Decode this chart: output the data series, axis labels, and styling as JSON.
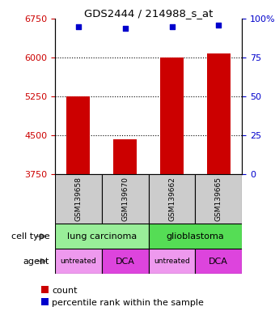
{
  "title": "GDS2444 / 214988_s_at",
  "samples": [
    "GSM139658",
    "GSM139670",
    "GSM139662",
    "GSM139665"
  ],
  "bar_values": [
    5250,
    4420,
    6000,
    6080
  ],
  "dot_values_pct": [
    95,
    94,
    95,
    96
  ],
  "ylim": [
    3750,
    6750
  ],
  "yticks_left": [
    3750,
    4500,
    5250,
    6000,
    6750
  ],
  "yticks_right": [
    0,
    25,
    50,
    75,
    100
  ],
  "bar_color": "#cc0000",
  "dot_color": "#0000cc",
  "cell_types": [
    {
      "label": "lung carcinoma",
      "span": [
        0,
        2
      ],
      "color": "#99ee99"
    },
    {
      "label": "glioblastoma",
      "span": [
        2,
        4
      ],
      "color": "#55dd55"
    }
  ],
  "agents": [
    {
      "label": "untreated",
      "span": [
        0,
        1
      ],
      "color": "#ee99ee"
    },
    {
      "label": "DCA",
      "span": [
        1,
        2
      ],
      "color": "#dd44dd"
    },
    {
      "label": "untreated",
      "span": [
        2,
        3
      ],
      "color": "#ee99ee"
    },
    {
      "label": "DCA",
      "span": [
        3,
        4
      ],
      "color": "#dd44dd"
    }
  ],
  "cell_type_label": "cell type",
  "agent_label": "agent",
  "legend_count_label": "count",
  "legend_pct_label": "percentile rank within the sample",
  "left_axis_color": "#cc0000",
  "right_axis_color": "#0000cc",
  "gsm_bg_color": "#cccccc",
  "gsm_text_fontsize": 6.5,
  "bar_width": 0.5
}
